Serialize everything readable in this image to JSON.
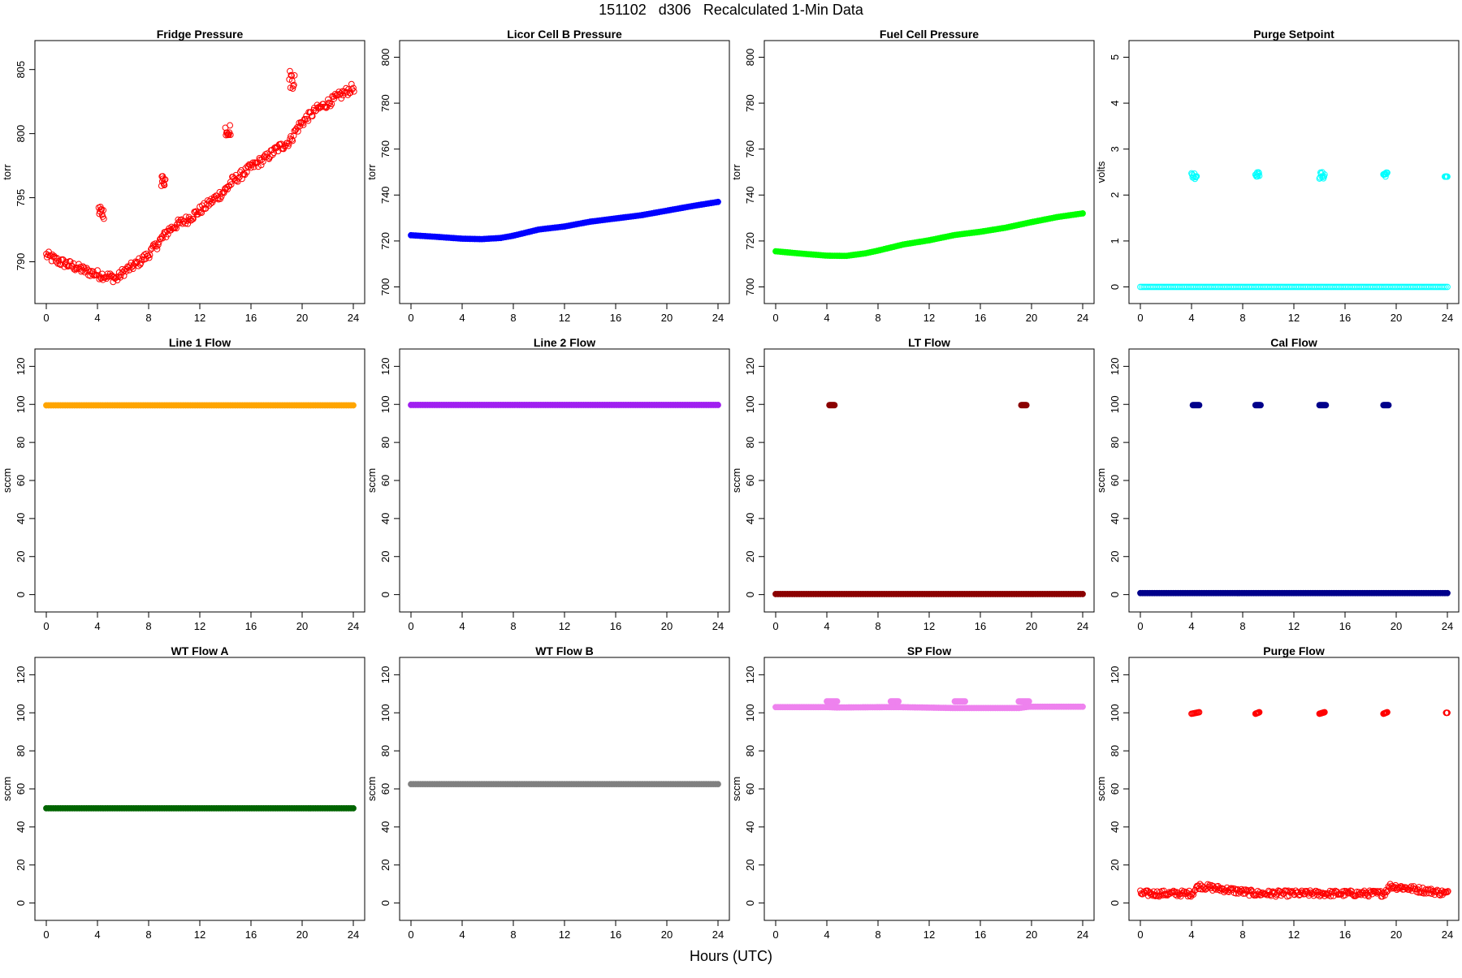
{
  "title": "151102   d306   Recalculated 1-Min Data",
  "xlabel": "Hours (UTC)",
  "chart_data": [
    {
      "type": "scatter",
      "title": "Fridge Pressure",
      "ylabel": "torr",
      "color": "#ff0000",
      "marker": "open-circle",
      "xlim": [
        0,
        24
      ],
      "ylim": [
        787.5,
        806.5
      ],
      "xticks": [
        0,
        4,
        8,
        12,
        16,
        20,
        24
      ],
      "yticks": [
        790,
        795,
        800,
        805
      ],
      "series": [
        {
          "x": [
            0,
            1,
            2,
            3,
            4,
            4.6,
            5.5,
            6,
            7,
            8,
            9,
            9.5,
            10,
            11,
            12,
            13,
            14,
            14.5,
            15,
            16,
            17,
            18,
            19,
            19.5,
            20,
            21,
            22,
            23,
            24
          ],
          "y": [
            790.5,
            790.0,
            789.7,
            789.3,
            789.0,
            788.9,
            788.7,
            789.2,
            789.8,
            790.6,
            791.8,
            792.4,
            792.8,
            793.3,
            794.0,
            794.8,
            795.6,
            796.3,
            796.6,
            797.4,
            798.0,
            798.8,
            799.4,
            800.3,
            800.9,
            801.8,
            802.4,
            803.0,
            803.6
          ],
          "clusters": [
            {
              "x": [
                4.1,
                4.5
              ],
              "y": [
                793.3,
                794.3
              ]
            },
            {
              "x": [
                9.0,
                9.3
              ],
              "y": [
                795.9,
                796.8
              ]
            },
            {
              "x": [
                14.0,
                14.4
              ],
              "y": [
                799.8,
                800.8
              ]
            },
            {
              "x": [
                19.0,
                19.4
              ],
              "y": [
                803.5,
                805.0
              ]
            }
          ]
        }
      ]
    },
    {
      "type": "scatter",
      "title": "Licor Cell B Pressure",
      "ylabel": "torr",
      "color": "#0000ff",
      "marker": "filled-circle",
      "xlim": [
        0,
        24
      ],
      "ylim": [
        697,
        803
      ],
      "xticks": [
        0,
        4,
        8,
        12,
        16,
        20,
        24
      ],
      "yticks": [
        700,
        720,
        740,
        760,
        780,
        800
      ],
      "series": [
        {
          "x": [
            0,
            2,
            4,
            5.5,
            7,
            8,
            10,
            12,
            14,
            16,
            18,
            20,
            22,
            24
          ],
          "y": [
            722.5,
            721.8,
            721.0,
            720.8,
            721.3,
            722.3,
            725.0,
            726.3,
            728.4,
            729.8,
            731.2,
            733.2,
            735.2,
            737.0
          ]
        }
      ]
    },
    {
      "type": "scatter",
      "title": "Fuel Cell Pressure",
      "ylabel": "torr",
      "color": "#00ff00",
      "marker": "filled-circle",
      "xlim": [
        0,
        24
      ],
      "ylim": [
        697,
        803
      ],
      "xticks": [
        0,
        4,
        8,
        12,
        16,
        20,
        24
      ],
      "yticks": [
        700,
        720,
        740,
        760,
        780,
        800
      ],
      "series": [
        {
          "x": [
            0,
            2,
            4,
            5.5,
            7,
            8,
            10,
            12,
            14,
            16,
            18,
            20,
            22,
            24
          ],
          "y": [
            715.5,
            714.5,
            713.6,
            713.5,
            714.6,
            715.8,
            718.5,
            720.3,
            722.6,
            724.0,
            725.8,
            728.2,
            730.4,
            732.0
          ]
        }
      ]
    },
    {
      "type": "scatter",
      "title": "Purge Setpoint",
      "ylabel": "volts",
      "color": "#00ffff",
      "marker": "open-circle",
      "xlim": [
        0,
        24
      ],
      "ylim": [
        -0.15,
        5.15
      ],
      "xticks": [
        0,
        4,
        8,
        12,
        16,
        20,
        24
      ],
      "yticks": [
        0,
        1,
        2,
        3,
        4,
        5
      ],
      "series": [
        {
          "x": [
            0,
            24
          ],
          "y": [
            0,
            0
          ],
          "clusters": [
            {
              "x": [
                4.0,
                4.4
              ],
              "y": [
                2.35,
                2.5
              ]
            },
            {
              "x": [
                9.0,
                9.3
              ],
              "y": [
                2.4,
                2.5
              ]
            },
            {
              "x": [
                14.0,
                14.4
              ],
              "y": [
                2.35,
                2.5
              ]
            },
            {
              "x": [
                19.0,
                19.3
              ],
              "y": [
                2.4,
                2.5
              ]
            },
            {
              "x": [
                23.8,
                24.0
              ],
              "y": [
                2.4,
                2.4
              ]
            }
          ]
        }
      ]
    },
    {
      "type": "scatter",
      "title": "Line 1 Flow",
      "ylabel": "sccm",
      "color": "#ffa500",
      "marker": "filled-circle",
      "xlim": [
        0,
        24
      ],
      "ylim": [
        -4,
        124
      ],
      "xticks": [
        0,
        4,
        8,
        12,
        16,
        20,
        24
      ],
      "yticks": [
        0,
        20,
        40,
        60,
        80,
        100,
        120
      ],
      "series": [
        {
          "x": [
            0,
            24
          ],
          "y": [
            99.5,
            99.5
          ]
        }
      ]
    },
    {
      "type": "scatter",
      "title": "Line 2 Flow",
      "ylabel": "sccm",
      "color": "#a020f0",
      "marker": "filled-circle",
      "xlim": [
        0,
        24
      ],
      "ylim": [
        -4,
        124
      ],
      "xticks": [
        0,
        4,
        8,
        12,
        16,
        20,
        24
      ],
      "yticks": [
        0,
        20,
        40,
        60,
        80,
        100,
        120
      ],
      "series": [
        {
          "x": [
            0,
            24
          ],
          "y": [
            99.7,
            99.7
          ]
        }
      ]
    },
    {
      "type": "scatter",
      "title": "LT Flow",
      "ylabel": "sccm",
      "color": "#8b0000",
      "marker": "filled-circle",
      "xlim": [
        0,
        24
      ],
      "ylim": [
        -4,
        124
      ],
      "xticks": [
        0,
        4,
        8,
        12,
        16,
        20,
        24
      ],
      "yticks": [
        0,
        20,
        40,
        60,
        80,
        100,
        120
      ],
      "series": [
        {
          "x": [
            0,
            24
          ],
          "y": [
            0.3,
            0.3
          ],
          "clusters": [
            {
              "x": [
                4.2,
                4.6
              ],
              "y": [
                99.6,
                99.6
              ]
            },
            {
              "x": [
                19.2,
                19.6
              ],
              "y": [
                99.6,
                99.6
              ]
            }
          ]
        }
      ]
    },
    {
      "type": "scatter",
      "title": "Cal Flow",
      "ylabel": "sccm",
      "color": "#00008b",
      "marker": "filled-circle",
      "xlim": [
        0,
        24
      ],
      "ylim": [
        -4,
        124
      ],
      "xticks": [
        0,
        4,
        8,
        12,
        16,
        20,
        24
      ],
      "yticks": [
        0,
        20,
        40,
        60,
        80,
        100,
        120
      ],
      "series": [
        {
          "x": [
            0,
            24
          ],
          "y": [
            0.8,
            0.8
          ],
          "clusters": [
            {
              "x": [
                4.1,
                4.6
              ],
              "y": [
                99.6,
                99.6
              ]
            },
            {
              "x": [
                9.0,
                9.4
              ],
              "y": [
                99.6,
                99.6
              ]
            },
            {
              "x": [
                14.0,
                14.5
              ],
              "y": [
                99.6,
                99.6
              ]
            },
            {
              "x": [
                19.0,
                19.4
              ],
              "y": [
                99.6,
                99.6
              ]
            }
          ]
        }
      ]
    },
    {
      "type": "scatter",
      "title": "WT Flow A",
      "ylabel": "sccm",
      "color": "#006400",
      "marker": "filled-circle",
      "xlim": [
        0,
        24
      ],
      "ylim": [
        -4,
        124
      ],
      "xticks": [
        0,
        4,
        8,
        12,
        16,
        20,
        24
      ],
      "yticks": [
        0,
        20,
        40,
        60,
        80,
        100,
        120
      ],
      "series": [
        {
          "x": [
            0,
            24
          ],
          "y": [
            49.8,
            49.8
          ]
        }
      ]
    },
    {
      "type": "scatter",
      "title": "WT Flow B",
      "ylabel": "sccm",
      "color": "#808080",
      "marker": "filled-circle",
      "xlim": [
        0,
        24
      ],
      "ylim": [
        -4,
        124
      ],
      "xticks": [
        0,
        4,
        8,
        12,
        16,
        20,
        24
      ],
      "yticks": [
        0,
        20,
        40,
        60,
        80,
        100,
        120
      ],
      "series": [
        {
          "x": [
            0,
            24
          ],
          "y": [
            62.5,
            62.5
          ]
        }
      ]
    },
    {
      "type": "scatter",
      "title": "SP Flow",
      "ylabel": "sccm",
      "color": "#ee82ee",
      "marker": "filled-circle",
      "xlim": [
        0,
        24
      ],
      "ylim": [
        -4,
        124
      ],
      "xticks": [
        0,
        4,
        8,
        12,
        16,
        20,
        24
      ],
      "yticks": [
        0,
        20,
        40,
        60,
        80,
        100,
        120
      ],
      "series": [
        {
          "x": [
            0,
            4,
            4.8,
            9,
            9.6,
            14,
            14.8,
            19,
            19.8,
            24
          ],
          "y": [
            103,
            103,
            102.8,
            103,
            103,
            102.5,
            102.5,
            102.5,
            103.2,
            103.2
          ],
          "clusters": [
            {
              "x": [
                4.0,
                4.8
              ],
              "y": [
                106,
                106
              ]
            },
            {
              "x": [
                9.0,
                9.6
              ],
              "y": [
                106,
                106
              ]
            },
            {
              "x": [
                14.0,
                14.8
              ],
              "y": [
                106,
                106
              ]
            },
            {
              "x": [
                19.0,
                19.8
              ],
              "y": [
                106,
                106
              ]
            }
          ]
        }
      ]
    },
    {
      "type": "scatter",
      "title": "Purge Flow",
      "ylabel": "sccm",
      "color": "#ff0000",
      "marker": "open-circle",
      "xlim": [
        0,
        24
      ],
      "ylim": [
        -4,
        124
      ],
      "xticks": [
        0,
        4,
        8,
        12,
        16,
        20,
        24
      ],
      "yticks": [
        0,
        20,
        40,
        60,
        80,
        100,
        120
      ],
      "series": [
        {
          "x": [
            0,
            4,
            4.5,
            9,
            14,
            19,
            19.5,
            24
          ],
          "y": [
            5,
            5,
            9,
            5,
            5,
            5,
            9,
            5
          ],
          "clusters": [
            {
              "x": [
                4.0,
                4.6
              ],
              "y": [
                99.5,
                100.3
              ]
            },
            {
              "x": [
                9.0,
                9.3
              ],
              "y": [
                99.5,
                100.3
              ]
            },
            {
              "x": [
                14.0,
                14.4
              ],
              "y": [
                99.5,
                100.3
              ]
            },
            {
              "x": [
                19.0,
                19.3
              ],
              "y": [
                99.5,
                100.3
              ]
            },
            {
              "x": [
                23.9,
                24.0
              ],
              "y": [
                100,
                100
              ]
            }
          ]
        }
      ]
    }
  ]
}
